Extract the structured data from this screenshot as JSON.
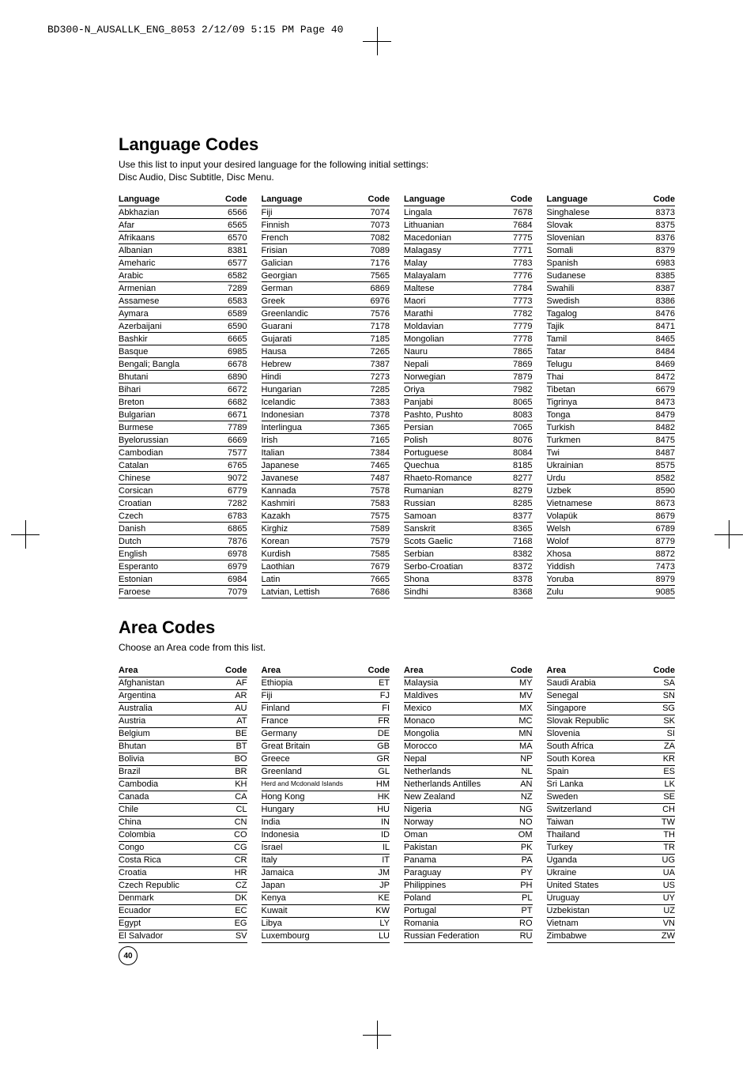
{
  "header": "BD300-N_AUSALLK_ENG_8053  2/12/09  5:15 PM  Page 40",
  "pageNumber": "40",
  "section1": {
    "title": "Language Codes",
    "subtitle": "Use this list to input your desired language for the following initial settings:\nDisc Audio, Disc Subtitle, Disc Menu.",
    "colHeaders": {
      "language": "Language",
      "code": "Code"
    },
    "columns": [
      [
        [
          "Abkhazian",
          "6566"
        ],
        [
          "Afar",
          "6565"
        ],
        [
          "Afrikaans",
          "6570"
        ],
        [
          "Albanian",
          "8381"
        ],
        [
          "Ameharic",
          "6577"
        ],
        [
          "Arabic",
          "6582"
        ],
        [
          "Armenian",
          "7289"
        ],
        [
          "Assamese",
          "6583"
        ],
        [
          "Aymara",
          "6589"
        ],
        [
          "Azerbaijani",
          "6590"
        ],
        [
          "Bashkir",
          "6665"
        ],
        [
          "Basque",
          "6985"
        ],
        [
          "Bengali; Bangla",
          "6678"
        ],
        [
          "Bhutani",
          "6890"
        ],
        [
          "Bihari",
          "6672"
        ],
        [
          "Breton",
          "6682"
        ],
        [
          "Bulgarian",
          "6671"
        ],
        [
          "Burmese",
          "7789"
        ],
        [
          "Byelorussian",
          "6669"
        ],
        [
          "Cambodian",
          "7577"
        ],
        [
          "Catalan",
          "6765"
        ],
        [
          "Chinese",
          "9072"
        ],
        [
          "Corsican",
          "6779"
        ],
        [
          "Croatian",
          "7282"
        ],
        [
          "Czech",
          "6783"
        ],
        [
          "Danish",
          "6865"
        ],
        [
          "Dutch",
          "7876"
        ],
        [
          "English",
          "6978"
        ],
        [
          "Esperanto",
          "6979"
        ],
        [
          "Estonian",
          "6984"
        ],
        [
          "Faroese",
          "7079"
        ]
      ],
      [
        [
          "Fiji",
          "7074"
        ],
        [
          "Finnish",
          "7073"
        ],
        [
          "French",
          "7082"
        ],
        [
          "Frisian",
          "7089"
        ],
        [
          "Galician",
          "7176"
        ],
        [
          "Georgian",
          "7565"
        ],
        [
          "German",
          "6869"
        ],
        [
          "Greek",
          "6976"
        ],
        [
          "Greenlandic",
          "7576"
        ],
        [
          "Guarani",
          "7178"
        ],
        [
          "Gujarati",
          "7185"
        ],
        [
          "Hausa",
          "7265"
        ],
        [
          "Hebrew",
          "7387"
        ],
        [
          "Hindi",
          "7273"
        ],
        [
          "Hungarian",
          "7285"
        ],
        [
          "Icelandic",
          "7383"
        ],
        [
          "Indonesian",
          "7378"
        ],
        [
          "Interlingua",
          "7365"
        ],
        [
          "Irish",
          "7165"
        ],
        [
          "Italian",
          "7384"
        ],
        [
          "Japanese",
          "7465"
        ],
        [
          "Javanese",
          "7487"
        ],
        [
          "Kannada",
          "7578"
        ],
        [
          "Kashmiri",
          "7583"
        ],
        [
          "Kazakh",
          "7575"
        ],
        [
          "Kirghiz",
          "7589"
        ],
        [
          "Korean",
          "7579"
        ],
        [
          "Kurdish",
          "7585"
        ],
        [
          "Laothian",
          "7679"
        ],
        [
          "Latin",
          "7665"
        ],
        [
          "Latvian, Lettish",
          "7686"
        ]
      ],
      [
        [
          "Lingala",
          "7678"
        ],
        [
          "Lithuanian",
          "7684"
        ],
        [
          "Macedonian",
          "7775"
        ],
        [
          "Malagasy",
          "7771"
        ],
        [
          "Malay",
          "7783"
        ],
        [
          "Malayalam",
          "7776"
        ],
        [
          "Maltese",
          "7784"
        ],
        [
          "Maori",
          "7773"
        ],
        [
          "Marathi",
          "7782"
        ],
        [
          "Moldavian",
          "7779"
        ],
        [
          "Mongolian",
          "7778"
        ],
        [
          "Nauru",
          "7865"
        ],
        [
          "Nepali",
          "7869"
        ],
        [
          "Norwegian",
          "7879"
        ],
        [
          "Oriya",
          "7982"
        ],
        [
          "Panjabi",
          "8065"
        ],
        [
          "Pashto, Pushto",
          "8083"
        ],
        [
          "Persian",
          "7065"
        ],
        [
          "Polish",
          "8076"
        ],
        [
          "Portuguese",
          "8084"
        ],
        [
          "Quechua",
          "8185"
        ],
        [
          "Rhaeto-Romance",
          "8277"
        ],
        [
          "Rumanian",
          "8279"
        ],
        [
          "Russian",
          "8285"
        ],
        [
          "Samoan",
          "8377"
        ],
        [
          "Sanskrit",
          "8365"
        ],
        [
          "Scots Gaelic",
          "7168"
        ],
        [
          "Serbian",
          "8382"
        ],
        [
          "Serbo-Croatian",
          "8372"
        ],
        [
          "Shona",
          "8378"
        ],
        [
          "Sindhi",
          "8368"
        ]
      ],
      [
        [
          "Singhalese",
          "8373"
        ],
        [
          "Slovak",
          "8375"
        ],
        [
          "Slovenian",
          "8376"
        ],
        [
          "Somali",
          "8379"
        ],
        [
          "Spanish",
          "6983"
        ],
        [
          "Sudanese",
          "8385"
        ],
        [
          "Swahili",
          "8387"
        ],
        [
          "Swedish",
          "8386"
        ],
        [
          "Tagalog",
          "8476"
        ],
        [
          "Tajik",
          "8471"
        ],
        [
          "Tamil",
          "8465"
        ],
        [
          "Tatar",
          "8484"
        ],
        [
          "Telugu",
          "8469"
        ],
        [
          "Thai",
          "8472"
        ],
        [
          "Tibetan",
          "6679"
        ],
        [
          "Tigrinya",
          "8473"
        ],
        [
          "Tonga",
          "8479"
        ],
        [
          "Turkish",
          "8482"
        ],
        [
          "Turkmen",
          "8475"
        ],
        [
          "Twi",
          "8487"
        ],
        [
          "Ukrainian",
          "8575"
        ],
        [
          "Urdu",
          "8582"
        ],
        [
          "Uzbek",
          "8590"
        ],
        [
          "Vietnamese",
          "8673"
        ],
        [
          "Volapük",
          "8679"
        ],
        [
          "Welsh",
          "6789"
        ],
        [
          "Wolof",
          "8779"
        ],
        [
          "Xhosa",
          "8872"
        ],
        [
          "Yiddish",
          "7473"
        ],
        [
          "Yoruba",
          "8979"
        ],
        [
          "Zulu",
          "9085"
        ]
      ]
    ]
  },
  "section2": {
    "title": "Area Codes",
    "subtitle": "Choose an Area code from this list.",
    "colHeaders": {
      "area": "Area",
      "code": "Code"
    },
    "columns": [
      [
        [
          "Afghanistan",
          "AF"
        ],
        [
          "Argentina",
          "AR"
        ],
        [
          "Australia",
          "AU"
        ],
        [
          "Austria",
          "AT"
        ],
        [
          "Belgium",
          "BE"
        ],
        [
          "Bhutan",
          "BT"
        ],
        [
          "Bolivia",
          "BO"
        ],
        [
          "Brazil",
          "BR"
        ],
        [
          "Cambodia",
          "KH"
        ],
        [
          "Canada",
          "CA"
        ],
        [
          "Chile",
          "CL"
        ],
        [
          "China",
          "CN"
        ],
        [
          "Colombia",
          "CO"
        ],
        [
          "Congo",
          "CG"
        ],
        [
          "Costa Rica",
          "CR"
        ],
        [
          "Croatia",
          "HR"
        ],
        [
          "Czech Republic",
          "CZ"
        ],
        [
          "Denmark",
          "DK"
        ],
        [
          "Ecuador",
          "EC"
        ],
        [
          "Egypt",
          "EG"
        ],
        [
          "El Salvador",
          "SV"
        ]
      ],
      [
        [
          "Ethiopia",
          "ET"
        ],
        [
          "Fiji",
          "FJ"
        ],
        [
          "Finland",
          "FI"
        ],
        [
          "France",
          "FR"
        ],
        [
          "Germany",
          "DE"
        ],
        [
          "Great Britain",
          "GB"
        ],
        [
          "Greece",
          "GR"
        ],
        [
          "Greenland",
          "GL"
        ],
        [
          "Herd and Mcdonald Islands",
          "HM"
        ],
        [
          "Hong Kong",
          "HK"
        ],
        [
          "Hungary",
          "HU"
        ],
        [
          "India",
          "IN"
        ],
        [
          "Indonesia",
          "ID"
        ],
        [
          "Israel",
          "IL"
        ],
        [
          "Italy",
          "IT"
        ],
        [
          "Jamaica",
          "JM"
        ],
        [
          "Japan",
          "JP"
        ],
        [
          "Kenya",
          "KE"
        ],
        [
          "Kuwait",
          "KW"
        ],
        [
          "Libya",
          "LY"
        ],
        [
          "Luxembourg",
          "LU"
        ]
      ],
      [
        [
          "Malaysia",
          "MY"
        ],
        [
          "Maldives",
          "MV"
        ],
        [
          "Mexico",
          "MX"
        ],
        [
          "Monaco",
          "MC"
        ],
        [
          "Mongolia",
          "MN"
        ],
        [
          "Morocco",
          "MA"
        ],
        [
          "Nepal",
          "NP"
        ],
        [
          "Netherlands",
          "NL"
        ],
        [
          "Netherlands Antilles",
          "AN"
        ],
        [
          "New Zealand",
          "NZ"
        ],
        [
          "Nigeria",
          "NG"
        ],
        [
          "Norway",
          "NO"
        ],
        [
          "Oman",
          "OM"
        ],
        [
          "Pakistan",
          "PK"
        ],
        [
          "Panama",
          "PA"
        ],
        [
          "Paraguay",
          "PY"
        ],
        [
          "Philippines",
          "PH"
        ],
        [
          "Poland",
          "PL"
        ],
        [
          "Portugal",
          "PT"
        ],
        [
          "Romania",
          "RO"
        ],
        [
          "Russian Federation",
          "RU"
        ]
      ],
      [
        [
          "Saudi Arabia",
          "SA"
        ],
        [
          "Senegal",
          "SN"
        ],
        [
          "Singapore",
          "SG"
        ],
        [
          "Slovak Republic",
          "SK"
        ],
        [
          "Slovenia",
          "SI"
        ],
        [
          "South Africa",
          "ZA"
        ],
        [
          "South Korea",
          "KR"
        ],
        [
          "Spain",
          "ES"
        ],
        [
          "Sri Lanka",
          "LK"
        ],
        [
          "Sweden",
          "SE"
        ],
        [
          "Switzerland",
          "CH"
        ],
        [
          "Taiwan",
          "TW"
        ],
        [
          "Thailand",
          "TH"
        ],
        [
          "Turkey",
          "TR"
        ],
        [
          "Uganda",
          "UG"
        ],
        [
          "Ukraine",
          "UA"
        ],
        [
          "United States",
          "US"
        ],
        [
          "Uruguay",
          "UY"
        ],
        [
          "Uzbekistan",
          "UZ"
        ],
        [
          "Vietnam",
          "VN"
        ],
        [
          "Zimbabwe",
          "ZW"
        ]
      ]
    ]
  }
}
